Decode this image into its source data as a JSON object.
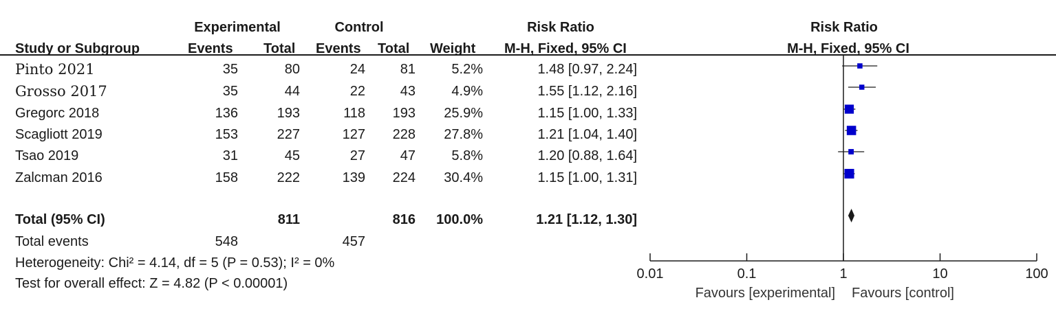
{
  "headers": {
    "group_experimental": "Experimental",
    "group_control": "Control",
    "group_risk_ratio": "Risk Ratio",
    "group_plot": "Risk Ratio",
    "study": "Study or Subgroup",
    "exp_events": "Events",
    "exp_total": "Total",
    "ctl_events": "Events",
    "ctl_total": "Total",
    "weight": "Weight",
    "rr_method": "M-H, Fixed, 95% CI",
    "plot_method": "M-H, Fixed, 95% CI"
  },
  "studies": [
    {
      "name": "Pinto 2021",
      "exp_events": "35",
      "exp_total": "80",
      "ctl_events": "24",
      "ctl_total": "81",
      "weight": "5.2%",
      "rr_text": "1.48 [0.97, 2.24]",
      "rr": 1.48,
      "lo": 0.97,
      "hi": 2.24,
      "w": 5.2
    },
    {
      "name": "Grosso 2017",
      "exp_events": "35",
      "exp_total": "44",
      "ctl_events": "22",
      "ctl_total": "43",
      "weight": "4.9%",
      "rr_text": "1.55 [1.12, 2.16]",
      "rr": 1.55,
      "lo": 1.12,
      "hi": 2.16,
      "w": 4.9
    },
    {
      "name": "Gregorc 2018",
      "exp_events": "136",
      "exp_total": "193",
      "ctl_events": "118",
      "ctl_total": "193",
      "weight": "25.9%",
      "rr_text": "1.15 [1.00, 1.33]",
      "rr": 1.15,
      "lo": 1.0,
      "hi": 1.33,
      "w": 25.9
    },
    {
      "name": "Scagliott 2019",
      "exp_events": "153",
      "exp_total": "227",
      "ctl_events": "127",
      "ctl_total": "228",
      "weight": "27.8%",
      "rr_text": "1.21 [1.04, 1.40]",
      "rr": 1.21,
      "lo": 1.04,
      "hi": 1.4,
      "w": 27.8
    },
    {
      "name": "Tsao 2019",
      "exp_events": "31",
      "exp_total": "45",
      "ctl_events": "27",
      "ctl_total": "47",
      "weight": "5.8%",
      "rr_text": "1.20 [0.88, 1.64]",
      "rr": 1.2,
      "lo": 0.88,
      "hi": 1.64,
      "w": 5.8
    },
    {
      "name": "Zalcman 2016",
      "exp_events": "158",
      "exp_total": "222",
      "ctl_events": "139",
      "ctl_total": "224",
      "weight": "30.4%",
      "rr_text": "1.15 [1.00, 1.31]",
      "rr": 1.15,
      "lo": 1.0,
      "hi": 1.31,
      "w": 30.4
    }
  ],
  "total": {
    "label": "Total (95% CI)",
    "exp_total": "811",
    "ctl_total": "816",
    "weight": "100.0%",
    "rr_text": "1.21 [1.12, 1.30]",
    "rr": 1.21,
    "lo": 1.12,
    "hi": 1.3
  },
  "total_events": {
    "label": "Total events",
    "exp": "548",
    "ctl": "457"
  },
  "heterogeneity": "Heterogeneity: Chi² = 4.14, df = 5 (P = 0.53); I² = 0%",
  "overall_effect": "Test for overall effect: Z = 4.82 (P < 0.00001)",
  "chart_data": {
    "type": "forest",
    "scale": "log",
    "xlim": [
      0.01,
      100
    ],
    "ticks": [
      0.01,
      0.1,
      1,
      10,
      100
    ],
    "tick_labels": [
      "0.01",
      "0.1",
      "1",
      "10",
      "100"
    ],
    "null_line": 1,
    "favours_left": "Favours [experimental]",
    "favours_right": "Favours [control]",
    "colors": {
      "square": "#0000cc",
      "line": "#1a1a1a",
      "diamond": "#1a1a1a"
    }
  }
}
